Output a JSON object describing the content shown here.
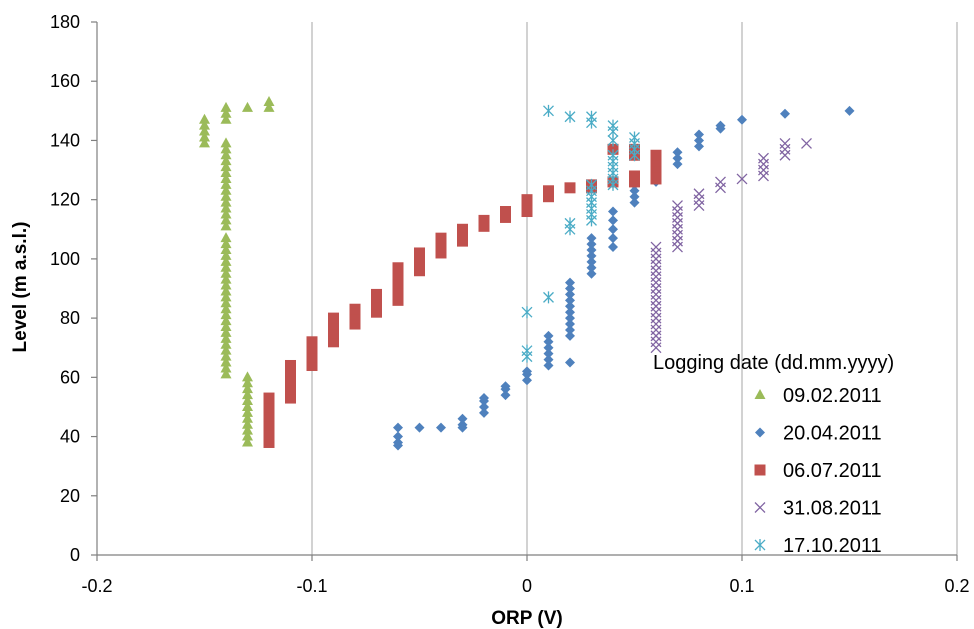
{
  "chart_data": {
    "type": "scatter",
    "title": "",
    "xlabel": "ORP (V)",
    "ylabel": "Level (m a.s.l.)",
    "xlim": [
      -0.2,
      0.2
    ],
    "ylim": [
      0,
      180
    ],
    "xticks": [
      -0.2,
      -0.1,
      0,
      0.1,
      0.2
    ],
    "xtick_labels": [
      "-0.2",
      "-0.1",
      "0",
      "0.1",
      "0.2"
    ],
    "yticks": [
      0,
      20,
      40,
      60,
      80,
      100,
      120,
      140,
      160,
      180
    ],
    "ytick_labels": [
      "0",
      "20",
      "40",
      "60",
      "80",
      "100",
      "120",
      "140",
      "160",
      "180"
    ],
    "grid": "vertical",
    "legend_title": "Logging date (dd.mm.yyyy)",
    "legend_position": "lower-right",
    "series": [
      {
        "name": "09.02.2011",
        "marker": "triangle",
        "color": "#9BBB59",
        "points": [
          [
            -0.15,
            139
          ],
          [
            -0.15,
            141
          ],
          [
            -0.15,
            143
          ],
          [
            -0.15,
            145
          ],
          [
            -0.15,
            147
          ],
          [
            -0.14,
            147
          ],
          [
            -0.14,
            149
          ],
          [
            -0.14,
            151
          ],
          [
            -0.13,
            151
          ],
          [
            -0.12,
            151
          ],
          [
            -0.12,
            153
          ],
          [
            -0.14,
            61
          ],
          [
            -0.14,
            63
          ],
          [
            -0.14,
            65
          ],
          [
            -0.14,
            67
          ],
          [
            -0.14,
            69
          ],
          [
            -0.14,
            71
          ],
          [
            -0.14,
            73
          ],
          [
            -0.14,
            75
          ],
          [
            -0.14,
            77
          ],
          [
            -0.14,
            79
          ],
          [
            -0.14,
            81
          ],
          [
            -0.14,
            83
          ],
          [
            -0.14,
            85
          ],
          [
            -0.14,
            87
          ],
          [
            -0.14,
            89
          ],
          [
            -0.14,
            91
          ],
          [
            -0.14,
            93
          ],
          [
            -0.14,
            95
          ],
          [
            -0.14,
            97
          ],
          [
            -0.14,
            99
          ],
          [
            -0.14,
            101
          ],
          [
            -0.14,
            103
          ],
          [
            -0.14,
            105
          ],
          [
            -0.14,
            107
          ],
          [
            -0.14,
            111
          ],
          [
            -0.14,
            113
          ],
          [
            -0.14,
            115
          ],
          [
            -0.14,
            117
          ],
          [
            -0.14,
            119
          ],
          [
            -0.14,
            121
          ],
          [
            -0.14,
            123
          ],
          [
            -0.14,
            125
          ],
          [
            -0.14,
            127
          ],
          [
            -0.14,
            129
          ],
          [
            -0.14,
            131
          ],
          [
            -0.14,
            133
          ],
          [
            -0.14,
            135
          ],
          [
            -0.14,
            137
          ],
          [
            -0.14,
            139
          ],
          [
            -0.13,
            38
          ],
          [
            -0.13,
            40
          ],
          [
            -0.13,
            42
          ],
          [
            -0.13,
            44
          ],
          [
            -0.13,
            46
          ],
          [
            -0.13,
            48
          ],
          [
            -0.13,
            50
          ],
          [
            -0.13,
            52
          ],
          [
            -0.13,
            54
          ],
          [
            -0.13,
            56
          ],
          [
            -0.13,
            58
          ],
          [
            -0.13,
            60
          ]
        ]
      },
      {
        "name": "20.04.2011",
        "marker": "diamond",
        "color": "#4F81BD",
        "points": [
          [
            -0.06,
            37
          ],
          [
            -0.06,
            38
          ],
          [
            -0.06,
            40
          ],
          [
            -0.06,
            43
          ],
          [
            -0.05,
            43
          ],
          [
            -0.04,
            43
          ],
          [
            -0.03,
            43
          ],
          [
            -0.03,
            44
          ],
          [
            -0.03,
            46
          ],
          [
            -0.02,
            48
          ],
          [
            -0.02,
            50
          ],
          [
            -0.02,
            52
          ],
          [
            -0.02,
            53
          ],
          [
            -0.01,
            54
          ],
          [
            -0.01,
            56
          ],
          [
            -0.01,
            57
          ],
          [
            0.0,
            59
          ],
          [
            0.0,
            61
          ],
          [
            0.0,
            62
          ],
          [
            0.01,
            64
          ],
          [
            0.01,
            66
          ],
          [
            0.01,
            68
          ],
          [
            0.01,
            70
          ],
          [
            0.01,
            72
          ],
          [
            0.01,
            74
          ],
          [
            0.02,
            65
          ],
          [
            0.02,
            74
          ],
          [
            0.02,
            76
          ],
          [
            0.02,
            78
          ],
          [
            0.02,
            80
          ],
          [
            0.02,
            82
          ],
          [
            0.02,
            84
          ],
          [
            0.02,
            86
          ],
          [
            0.02,
            88
          ],
          [
            0.02,
            90
          ],
          [
            0.02,
            92
          ],
          [
            0.03,
            95
          ],
          [
            0.03,
            97
          ],
          [
            0.03,
            99
          ],
          [
            0.03,
            101
          ],
          [
            0.03,
            103
          ],
          [
            0.03,
            105
          ],
          [
            0.03,
            107
          ],
          [
            0.04,
            104
          ],
          [
            0.04,
            107
          ],
          [
            0.04,
            110
          ],
          [
            0.04,
            113
          ],
          [
            0.04,
            116
          ],
          [
            0.05,
            119
          ],
          [
            0.05,
            121
          ],
          [
            0.05,
            123
          ],
          [
            0.05,
            125
          ],
          [
            0.06,
            126
          ],
          [
            0.06,
            128
          ],
          [
            0.06,
            130
          ],
          [
            0.07,
            132
          ],
          [
            0.07,
            134
          ],
          [
            0.07,
            136
          ],
          [
            0.08,
            138
          ],
          [
            0.08,
            140
          ],
          [
            0.08,
            142
          ],
          [
            0.09,
            144
          ],
          [
            0.09,
            145
          ],
          [
            0.1,
            147
          ],
          [
            0.12,
            149
          ],
          [
            0.15,
            150
          ]
        ]
      },
      {
        "name": "06.07.2011",
        "marker": "square",
        "color": "#C0504D",
        "points": [
          [
            -0.12,
            38
          ],
          [
            -0.12,
            41
          ],
          [
            -0.12,
            44
          ],
          [
            -0.12,
            47
          ],
          [
            -0.12,
            50
          ],
          [
            -0.12,
            53
          ],
          [
            -0.11,
            53
          ],
          [
            -0.11,
            56
          ],
          [
            -0.11,
            59
          ],
          [
            -0.11,
            62
          ],
          [
            -0.11,
            64
          ],
          [
            -0.1,
            64
          ],
          [
            -0.1,
            67
          ],
          [
            -0.1,
            70
          ],
          [
            -0.1,
            72
          ],
          [
            -0.09,
            72
          ],
          [
            -0.09,
            75
          ],
          [
            -0.09,
            78
          ],
          [
            -0.09,
            80
          ],
          [
            -0.08,
            78
          ],
          [
            -0.08,
            80
          ],
          [
            -0.08,
            83
          ],
          [
            -0.07,
            82
          ],
          [
            -0.07,
            85
          ],
          [
            -0.07,
            88
          ],
          [
            -0.06,
            86
          ],
          [
            -0.06,
            89
          ],
          [
            -0.06,
            92
          ],
          [
            -0.06,
            95
          ],
          [
            -0.06,
            97
          ],
          [
            -0.05,
            96
          ],
          [
            -0.05,
            98
          ],
          [
            -0.05,
            100
          ],
          [
            -0.05,
            102
          ],
          [
            -0.04,
            102
          ],
          [
            -0.04,
            104
          ],
          [
            -0.04,
            107
          ],
          [
            -0.03,
            106
          ],
          [
            -0.03,
            108
          ],
          [
            -0.03,
            110
          ],
          [
            -0.02,
            111
          ],
          [
            -0.02,
            113
          ],
          [
            -0.01,
            114
          ],
          [
            -0.01,
            116
          ],
          [
            0.0,
            116
          ],
          [
            0.0,
            118
          ],
          [
            0.0,
            120
          ],
          [
            0.01,
            121
          ],
          [
            0.01,
            123
          ],
          [
            0.02,
            124
          ],
          [
            0.03,
            124
          ],
          [
            0.03,
            125
          ],
          [
            0.04,
            126
          ],
          [
            0.04,
            137
          ],
          [
            0.05,
            126
          ],
          [
            0.05,
            128
          ],
          [
            0.05,
            135
          ],
          [
            0.05,
            137
          ],
          [
            0.06,
            127
          ],
          [
            0.06,
            129
          ],
          [
            0.06,
            131
          ],
          [
            0.06,
            133
          ],
          [
            0.06,
            135
          ]
        ]
      },
      {
        "name": "31.08.2011",
        "marker": "x",
        "color": "#8064A2",
        "points": [
          [
            0.06,
            70
          ],
          [
            0.06,
            72
          ],
          [
            0.06,
            74
          ],
          [
            0.06,
            76
          ],
          [
            0.06,
            78
          ],
          [
            0.06,
            80
          ],
          [
            0.06,
            82
          ],
          [
            0.06,
            84
          ],
          [
            0.06,
            86
          ],
          [
            0.06,
            88
          ],
          [
            0.06,
            90
          ],
          [
            0.06,
            92
          ],
          [
            0.06,
            94
          ],
          [
            0.06,
            96
          ],
          [
            0.06,
            98
          ],
          [
            0.06,
            100
          ],
          [
            0.06,
            102
          ],
          [
            0.06,
            104
          ],
          [
            0.07,
            104
          ],
          [
            0.07,
            106
          ],
          [
            0.07,
            108
          ],
          [
            0.07,
            110
          ],
          [
            0.07,
            112
          ],
          [
            0.07,
            114
          ],
          [
            0.07,
            116
          ],
          [
            0.07,
            118
          ],
          [
            0.08,
            118
          ],
          [
            0.08,
            120
          ],
          [
            0.08,
            122
          ],
          [
            0.09,
            124
          ],
          [
            0.09,
            126
          ],
          [
            0.1,
            127
          ],
          [
            0.11,
            128
          ],
          [
            0.11,
            130
          ],
          [
            0.11,
            132
          ],
          [
            0.11,
            134
          ],
          [
            0.12,
            135
          ],
          [
            0.12,
            137
          ],
          [
            0.12,
            139
          ],
          [
            0.13,
            139
          ]
        ]
      },
      {
        "name": "17.10.2011",
        "marker": "asterisk",
        "color": "#4BACC6",
        "points": [
          [
            0.0,
            67
          ],
          [
            0.0,
            69
          ],
          [
            0.0,
            82
          ],
          [
            0.01,
            87
          ],
          [
            0.01,
            150
          ],
          [
            0.02,
            110
          ],
          [
            0.02,
            112
          ],
          [
            0.02,
            148
          ],
          [
            0.03,
            113
          ],
          [
            0.03,
            115
          ],
          [
            0.03,
            117
          ],
          [
            0.03,
            119
          ],
          [
            0.03,
            121
          ],
          [
            0.03,
            123
          ],
          [
            0.03,
            125
          ],
          [
            0.03,
            146
          ],
          [
            0.03,
            148
          ],
          [
            0.04,
            125
          ],
          [
            0.04,
            127
          ],
          [
            0.04,
            129
          ],
          [
            0.04,
            131
          ],
          [
            0.04,
            133
          ],
          [
            0.04,
            135
          ],
          [
            0.04,
            140
          ],
          [
            0.04,
            143
          ],
          [
            0.04,
            145
          ],
          [
            0.05,
            135
          ],
          [
            0.05,
            137
          ],
          [
            0.05,
            139
          ],
          [
            0.05,
            141
          ]
        ]
      }
    ]
  }
}
